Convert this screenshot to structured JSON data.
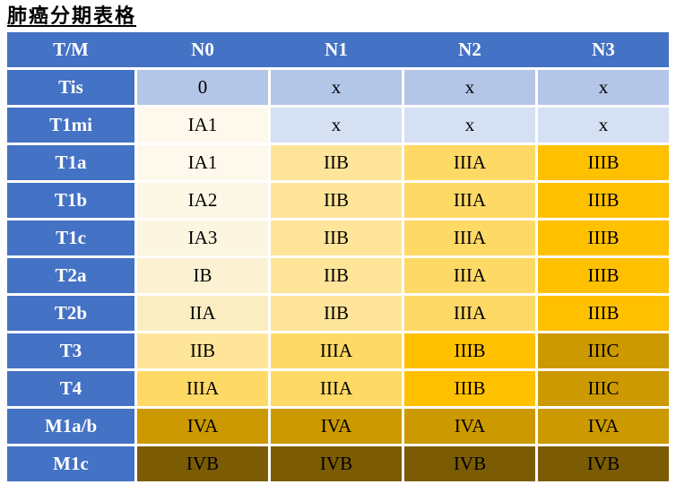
{
  "title": "肺癌分期表格",
  "table": {
    "columns": [
      "T/M",
      "N0",
      "N1",
      "N2",
      "N3"
    ],
    "rows": [
      {
        "label": "Tis",
        "cells": [
          {
            "text": "0",
            "stage": "stage0"
          },
          {
            "text": "x",
            "stage": "x_tis"
          },
          {
            "text": "x",
            "stage": "x_tis"
          },
          {
            "text": "x",
            "stage": "x_tis"
          }
        ]
      },
      {
        "label": "T1mi",
        "cells": [
          {
            "text": "IA1",
            "stage": "IA1"
          },
          {
            "text": "x",
            "stage": "x_t1mi"
          },
          {
            "text": "x",
            "stage": "x_t1mi"
          },
          {
            "text": "x",
            "stage": "x_t1mi"
          }
        ]
      },
      {
        "label": "T1a",
        "cells": [
          {
            "text": "IA1",
            "stage": "IA1"
          },
          {
            "text": "IIB",
            "stage": "IIB"
          },
          {
            "text": "IIIA",
            "stage": "IIIA"
          },
          {
            "text": "IIIB",
            "stage": "IIIB"
          }
        ]
      },
      {
        "label": "T1b",
        "cells": [
          {
            "text": "IA2",
            "stage": "IA2"
          },
          {
            "text": "IIB",
            "stage": "IIB"
          },
          {
            "text": "IIIA",
            "stage": "IIIA"
          },
          {
            "text": "IIIB",
            "stage": "IIIB"
          }
        ]
      },
      {
        "label": "T1c",
        "cells": [
          {
            "text": "IA3",
            "stage": "IA3"
          },
          {
            "text": "IIB",
            "stage": "IIB"
          },
          {
            "text": "IIIA",
            "stage": "IIIA"
          },
          {
            "text": "IIIB",
            "stage": "IIIB"
          }
        ]
      },
      {
        "label": "T2a",
        "cells": [
          {
            "text": "IB",
            "stage": "IB"
          },
          {
            "text": "IIB",
            "stage": "IIB"
          },
          {
            "text": "IIIA",
            "stage": "IIIA"
          },
          {
            "text": "IIIB",
            "stage": "IIIB"
          }
        ]
      },
      {
        "label": "T2b",
        "cells": [
          {
            "text": "IIA",
            "stage": "IIA"
          },
          {
            "text": "IIB",
            "stage": "IIB"
          },
          {
            "text": "IIIA",
            "stage": "IIIA"
          },
          {
            "text": "IIIB",
            "stage": "IIIB"
          }
        ]
      },
      {
        "label": "T3",
        "cells": [
          {
            "text": "IIB",
            "stage": "IIB"
          },
          {
            "text": "IIIA",
            "stage": "IIIA"
          },
          {
            "text": "IIIB",
            "stage": "IIIB"
          },
          {
            "text": "IIIC",
            "stage": "IIIC"
          }
        ]
      },
      {
        "label": "T4",
        "cells": [
          {
            "text": "IIIA",
            "stage": "IIIA"
          },
          {
            "text": "IIIA",
            "stage": "IIIA"
          },
          {
            "text": "IIIB",
            "stage": "IIIB"
          },
          {
            "text": "IIIC",
            "stage": "IIIC"
          }
        ]
      },
      {
        "label": "M1a/b",
        "cells": [
          {
            "text": "IVA",
            "stage": "IVA"
          },
          {
            "text": "IVA",
            "stage": "IVA"
          },
          {
            "text": "IVA",
            "stage": "IVA"
          },
          {
            "text": "IVA",
            "stage": "IVA"
          }
        ]
      },
      {
        "label": "M1c",
        "cells": [
          {
            "text": "IVB",
            "stage": "IVB"
          },
          {
            "text": "IVB",
            "stage": "IVB"
          },
          {
            "text": "IVB",
            "stage": "IVB"
          },
          {
            "text": "IVB",
            "stage": "IVB"
          }
        ]
      }
    ]
  },
  "colors": {
    "header_bg": "#4472C4",
    "header_text": "#FFFFFF",
    "cell_text": "#000000",
    "stage_colors": {
      "stage0": "#B4C6E7",
      "x_tis": "#B4C6E7",
      "x_t1mi": "#D6E0F3",
      "IA1": "#FEF9EC",
      "IA2": "#FDF7E5",
      "IA3": "#FCF5DF",
      "IB": "#FCF2D3",
      "IIA": "#FAEDC2",
      "IIB": "#FFE599",
      "IIIA": "#FFD966",
      "IIIB": "#FFC000",
      "IIIC": "#CC9A00",
      "IVA": "#CC9A00",
      "IVB": "#7B5C05"
    }
  }
}
